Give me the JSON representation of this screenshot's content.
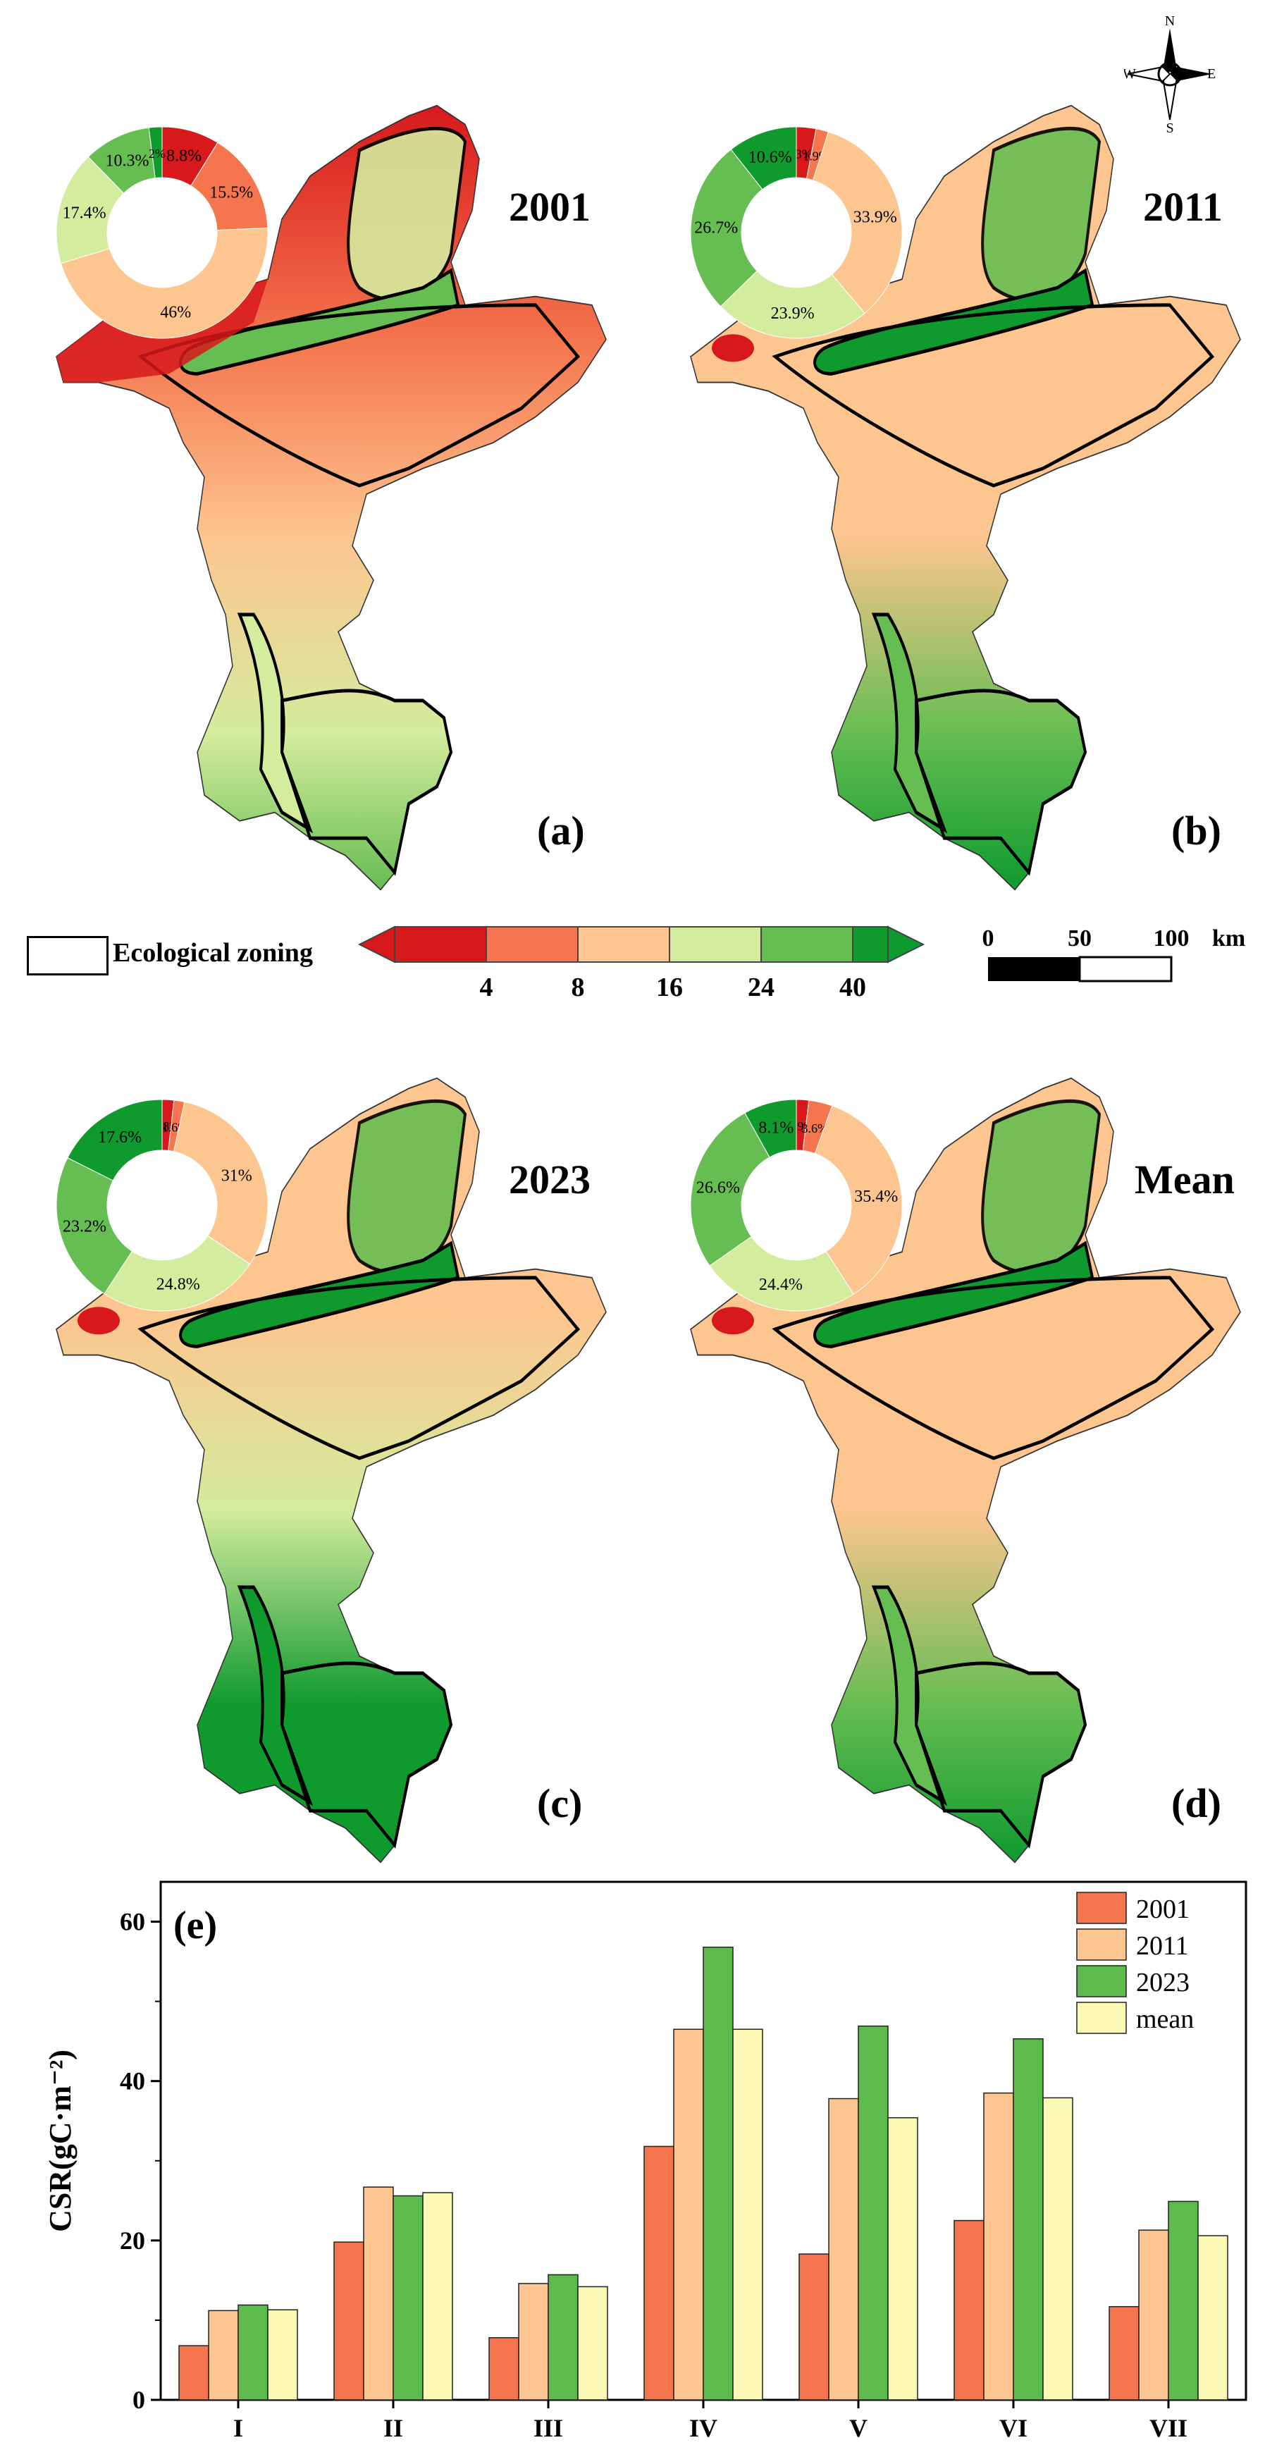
{
  "palette": {
    "c1": "#d7191c",
    "c2": "#f4754e",
    "c3": "#fdc58f",
    "c4": "#d4ec9e",
    "c5": "#66bd52",
    "c6": "#0f9a2e"
  },
  "compass": {
    "n": "N",
    "s": "S",
    "e": "E",
    "w": "W"
  },
  "panels": [
    {
      "id": "a",
      "label": "(a)",
      "year": "2001",
      "donut": [
        {
          "pct": 8.8,
          "label": "8.8%",
          "color": "c1"
        },
        {
          "pct": 15.5,
          "label": "15.5%",
          "color": "c2"
        },
        {
          "pct": 46,
          "label": "46%",
          "color": "c3"
        },
        {
          "pct": 17.4,
          "label": "17.4%",
          "color": "c4"
        },
        {
          "pct": 10.3,
          "label": "10.3%",
          "color": "c5"
        },
        {
          "pct": 2,
          "label": "2%",
          "color": "c6"
        }
      ]
    },
    {
      "id": "b",
      "label": "(b)",
      "year": "2011",
      "donut": [
        {
          "pct": 3,
          "label": "3%",
          "color": "c1"
        },
        {
          "pct": 1.9,
          "label": "1.9%",
          "color": "c2"
        },
        {
          "pct": 33.9,
          "label": "33.9%",
          "color": "c3"
        },
        {
          "pct": 23.9,
          "label": "23.9%",
          "color": "c4"
        },
        {
          "pct": 26.7,
          "label": "26.7%",
          "color": "c5"
        },
        {
          "pct": 10.6,
          "label": "10.6%",
          "color": "c6"
        }
      ]
    },
    {
      "id": "c",
      "label": "(c)",
      "year": "2023",
      "donut": [
        {
          "pct": 1.8,
          "label": "1.8%",
          "color": "c1"
        },
        {
          "pct": 1.6,
          "label": "1.6%",
          "color": "c2"
        },
        {
          "pct": 31,
          "label": "31%",
          "color": "c3"
        },
        {
          "pct": 24.8,
          "label": "24.8%",
          "color": "c4"
        },
        {
          "pct": 23.2,
          "label": "23.2%",
          "color": "c5"
        },
        {
          "pct": 17.6,
          "label": "17.6%",
          "color": "c6"
        }
      ]
    },
    {
      "id": "d",
      "label": "(d)",
      "year": "Mean",
      "donut": [
        {
          "pct": 1.9,
          "label": "1.9%",
          "color": "c1"
        },
        {
          "pct": 3.6,
          "label": "3.6%",
          "color": "c2"
        },
        {
          "pct": 35.4,
          "label": "35.4%",
          "color": "c3"
        },
        {
          "pct": 24.4,
          "label": "24.4%",
          "color": "c4"
        },
        {
          "pct": 26.6,
          "label": "26.6%",
          "color": "c5"
        },
        {
          "pct": 8.1,
          "label": "8.1%",
          "color": "c6"
        }
      ]
    }
  ],
  "legend": {
    "zoning_label": "Ecological zoning",
    "breaks": [
      "4",
      "8",
      "16",
      "24",
      "40"
    ],
    "scale_labels": [
      "0",
      "50",
      "100"
    ],
    "scale_unit": "km"
  },
  "chart_data": {
    "type": "bar",
    "panel_label": "(e)",
    "ylabel": "CSR(gC·m⁻²)",
    "ylim": [
      0,
      65
    ],
    "yticks": [
      0,
      20,
      40,
      60
    ],
    "categories": [
      "I",
      "II",
      "III",
      "IV",
      "V",
      "VI",
      "VII"
    ],
    "series": [
      {
        "name": "2001",
        "color": "#f4754e",
        "values": [
          6.8,
          19.8,
          7.8,
          31.8,
          18.3,
          22.5,
          11.7
        ]
      },
      {
        "name": "2011",
        "color": "#fdc58f",
        "values": [
          11.2,
          26.7,
          14.6,
          46.5,
          37.8,
          38.5,
          21.3
        ]
      },
      {
        "name": "2023",
        "color": "#5dba4c",
        "values": [
          11.9,
          25.6,
          15.7,
          56.8,
          46.9,
          45.3,
          24.9
        ]
      },
      {
        "name": "mean",
        "color": "#fcf8b6",
        "values": [
          11.3,
          26.0,
          14.2,
          46.5,
          35.4,
          37.9,
          20.6
        ]
      }
    ],
    "legend_position": "top-right"
  }
}
